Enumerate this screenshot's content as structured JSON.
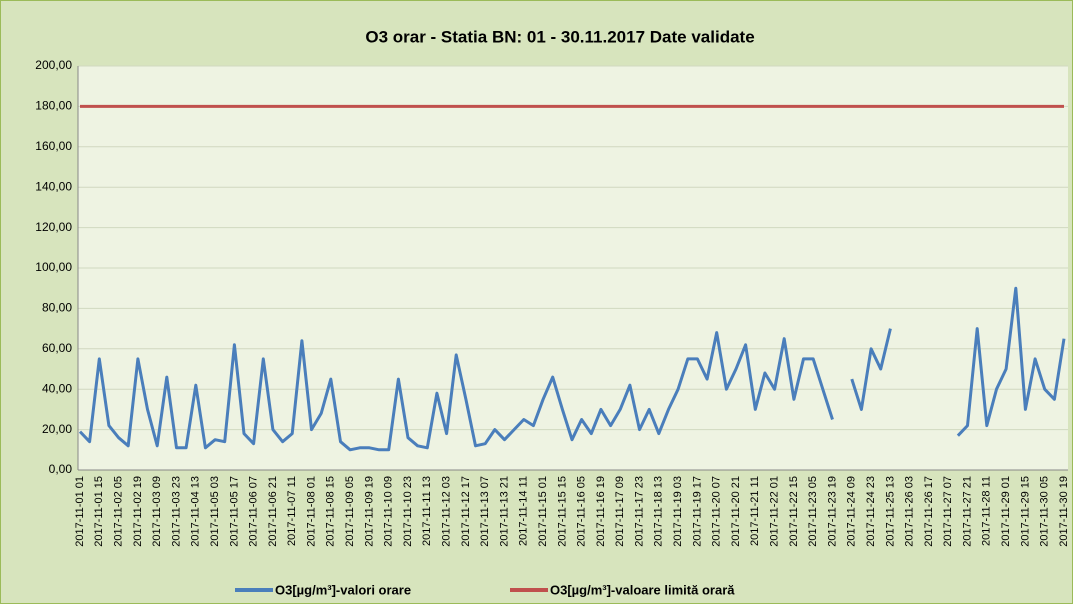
{
  "chart_data": {
    "type": "line",
    "title": "O3 orar - Statia BN: 01 - 30.11.2017 Date validate",
    "categories": [
      "2017-11-01 01",
      null,
      "2017-11-01 15",
      null,
      "2017-11-02 05",
      null,
      "2017-11-02 19",
      null,
      "2017-11-03 09",
      null,
      "2017-11-03 23",
      null,
      "2017-11-04 13",
      null,
      "2017-11-05 03",
      null,
      "2017-11-05 17",
      null,
      "2017-11-06 07",
      null,
      "2017-11-06 21",
      null,
      "2017-11-07 11",
      null,
      "2017-11-08 01",
      null,
      "2017-11-08 15",
      null,
      "2017-11-09 05",
      null,
      "2017-11-09 19",
      null,
      "2017-11-10 09",
      null,
      "2017-11-10 23",
      null,
      "2017-11-11 13",
      null,
      "2017-11-12 03",
      null,
      "2017-11-12 17",
      null,
      "2017-11-13 07",
      null,
      "2017-11-13 21",
      null,
      "2017-11-14 11",
      null,
      "2017-11-15 01",
      null,
      "2017-11-15 15",
      null,
      "2017-11-16 05",
      null,
      "2017-11-16 19",
      null,
      "2017-11-17 09",
      null,
      "2017-11-17 23",
      null,
      "2017-11-18 13",
      null,
      "2017-11-19 03",
      null,
      "2017-11-19 17",
      null,
      "2017-11-20 07",
      null,
      "2017-11-20 21",
      null,
      "2017-11-21 11",
      null,
      "2017-11-22 01",
      null,
      "2017-11-22 15",
      null,
      "2017-11-23 05",
      null,
      "2017-11-23 19",
      null,
      "2017-11-24 09",
      null,
      "2017-11-24 23",
      null,
      "2017-11-25 13",
      null,
      "2017-11-26 03",
      null,
      "2017-11-26 17",
      null,
      "2017-11-27 07",
      null,
      "2017-11-27 21",
      null,
      "2017-11-28 11",
      null,
      "2017-11-29 01",
      null,
      "2017-11-29 15",
      null,
      "2017-11-30 05",
      null,
      "2017-11-30 19"
    ],
    "series": [
      {
        "name": "O3[µg/m³]-valori orare",
        "color": "#4a7ebb",
        "values": [
          19,
          14,
          55,
          22,
          16,
          12,
          55,
          30,
          12,
          46,
          11,
          11,
          42,
          11,
          15,
          14,
          62,
          18,
          13,
          55,
          20,
          14,
          18,
          64,
          20,
          28,
          45,
          14,
          10,
          11,
          11,
          10,
          10,
          45,
          16,
          12,
          11,
          38,
          18,
          57,
          35,
          12,
          13,
          20,
          15,
          20,
          25,
          22,
          35,
          46,
          30,
          15,
          25,
          18,
          30,
          22,
          30,
          42,
          20,
          30,
          18,
          30,
          40,
          55,
          55,
          45,
          68,
          40,
          50,
          62,
          30,
          48,
          40,
          65,
          35,
          55,
          55,
          40,
          25,
          null,
          45,
          30,
          60,
          50,
          70,
          null,
          null,
          null,
          null,
          null,
          null,
          17,
          22,
          70,
          22,
          40,
          50,
          90,
          30,
          55,
          40,
          35,
          65
        ]
      },
      {
        "name": "O3[µg/m³]-valoare limită orară",
        "color": "#c0504d",
        "values": [
          180,
          180,
          180,
          180,
          180,
          180,
          180,
          180,
          180,
          180,
          180,
          180,
          180,
          180,
          180,
          180,
          180,
          180,
          180,
          180,
          180,
          180,
          180,
          180,
          180,
          180,
          180,
          180,
          180,
          180,
          180,
          180,
          180,
          180,
          180,
          180,
          180,
          180,
          180,
          180,
          180,
          180,
          180,
          180,
          180,
          180,
          180,
          180,
          180,
          180,
          180,
          180,
          180,
          180,
          180,
          180,
          180,
          180,
          180,
          180,
          180,
          180,
          180,
          180,
          180,
          180,
          180,
          180,
          180,
          180,
          180,
          180,
          180,
          180,
          180,
          180,
          180,
          180,
          180,
          180,
          180,
          180,
          180,
          180,
          180,
          180,
          180,
          180,
          180,
          180,
          180,
          180,
          180,
          180,
          180,
          180,
          180,
          180,
          180,
          180,
          180,
          180,
          180
        ]
      }
    ],
    "ylim": [
      0,
      200
    ],
    "yticks": [
      {
        "value": 0,
        "label": "0,00"
      },
      {
        "value": 20,
        "label": "20,00"
      },
      {
        "value": 40,
        "label": "40,00"
      },
      {
        "value": 60,
        "label": "60,00"
      },
      {
        "value": 80,
        "label": "80,00"
      },
      {
        "value": 100,
        "label": "100,00"
      },
      {
        "value": 120,
        "label": "120,00"
      },
      {
        "value": 140,
        "label": "140,00"
      },
      {
        "value": 160,
        "label": "160,00"
      },
      {
        "value": 180,
        "label": "180,00"
      },
      {
        "value": 200,
        "label": "200,00"
      }
    ],
    "grid": true,
    "legend": "bottom"
  }
}
